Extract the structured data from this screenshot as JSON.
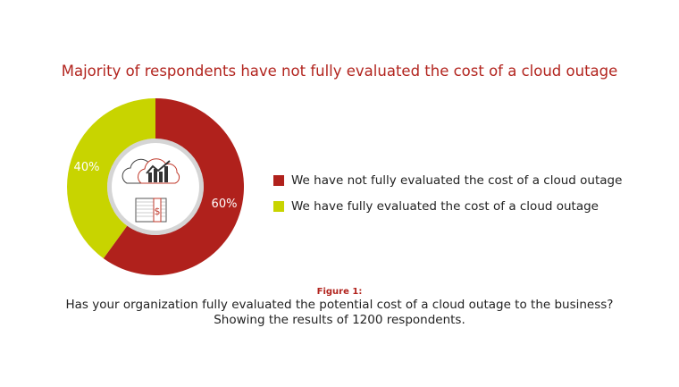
{
  "chart_data": {
    "type": "pie",
    "donut": true,
    "title": "Majority of respondents have not fully evaluated the cost of a cloud outage",
    "slices": [
      {
        "name": "We have not fully evaluated the cost of a cloud outage",
        "value": 60,
        "label": "60%",
        "color": "#b0211c"
      },
      {
        "name": "We have fully evaluated the cost of a cloud outage",
        "value": 40,
        "label": "40%",
        "color": "#c8d400"
      }
    ],
    "legend_position": "right",
    "center_icons": [
      "cloud-chart-icon",
      "money-stack-icon"
    ]
  },
  "caption": {
    "figure_label": "Figure 1:",
    "line1": "Has your organization fully evaluated the potential cost of a cloud outage to the business?",
    "line2": "Showing the results of 1200 respondents."
  }
}
